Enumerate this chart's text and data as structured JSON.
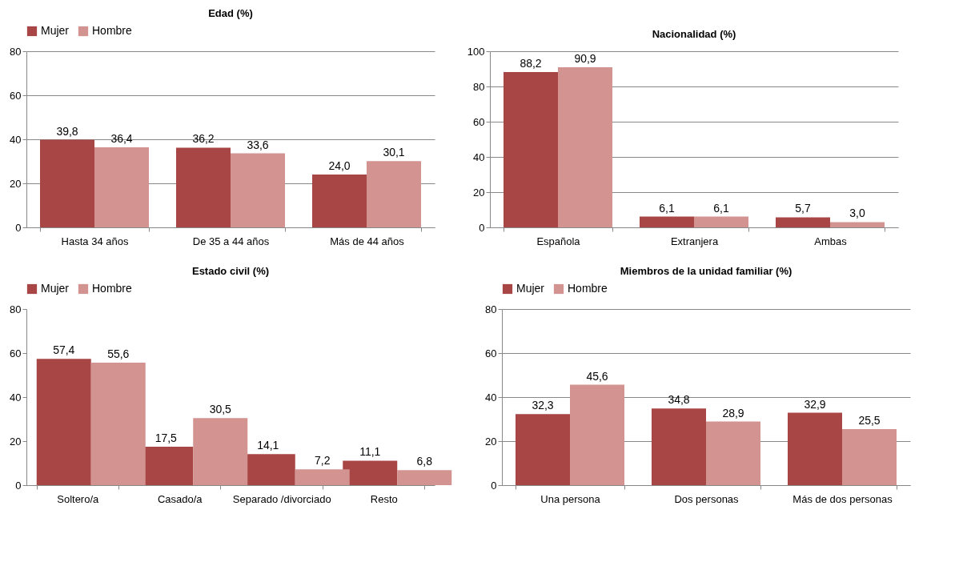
{
  "chart_data": [
    {
      "type": "bar",
      "title": "Edad (%)",
      "categories": [
        "Hasta 34 años",
        "De 35 a 44 años",
        "Más de 44 años"
      ],
      "ylim": [
        0,
        80
      ],
      "yticks": [
        0,
        20,
        40,
        60,
        80
      ],
      "grid": "y",
      "legend": "top",
      "series": [
        {
          "name": "Mujer",
          "color": "#a84646",
          "values": [
            39.8,
            36.2,
            24.0
          ],
          "value_labels": [
            "39,8",
            "36,2",
            "24,0"
          ]
        },
        {
          "name": "Hombre",
          "color": "#d39391",
          "values": [
            36.4,
            33.6,
            30.1
          ],
          "value_labels": [
            "36,4",
            "33,6",
            "30,1"
          ]
        }
      ]
    },
    {
      "type": "bar",
      "title": "Nacionalidad (%)",
      "categories": [
        "Española",
        "Extranjera",
        "Ambas"
      ],
      "ylim": [
        0,
        100
      ],
      "yticks": [
        0,
        20,
        40,
        60,
        80,
        100
      ],
      "grid": "y",
      "series": [
        {
          "color": "#a84646",
          "values": [
            88.2,
            6.1,
            5.7
          ],
          "value_labels": [
            "88,2",
            "6,1",
            "5,7"
          ]
        },
        {
          "color": "#d39391",
          "values": [
            90.9,
            6.1,
            3.0
          ],
          "value_labels": [
            "90,9",
            "6,1",
            "3,0"
          ]
        }
      ]
    },
    {
      "type": "bar",
      "title": "Estado civil (%)",
      "categories": [
        "Soltero/a",
        "Casado/a",
        "Separado /divorciado",
        "Resto"
      ],
      "ylim": [
        0,
        80
      ],
      "yticks": [
        0,
        20,
        40,
        60,
        80
      ],
      "legend": "top",
      "series": [
        {
          "name": "Mujer",
          "color": "#a84646",
          "values": [
            57.4,
            17.5,
            14.1,
            11.1
          ],
          "value_labels": [
            "57,4",
            "17,5",
            "14,1",
            "11,1"
          ]
        },
        {
          "name": "Hombre",
          "color": "#d39391",
          "values": [
            55.6,
            30.5,
            7.2,
            6.8
          ],
          "value_labels": [
            "55,6",
            "30,5",
            "7,2",
            "6,8"
          ]
        }
      ]
    },
    {
      "type": "bar",
      "title": "Miembros de la unidad familiar (%)",
      "categories": [
        "Una persona",
        "Dos personas",
        "Más de dos personas"
      ],
      "ylim": [
        0,
        80
      ],
      "yticks": [
        0,
        20,
        40,
        60,
        80
      ],
      "grid": "y",
      "legend": "top",
      "series": [
        {
          "name": "Mujer",
          "color": "#a84646",
          "values": [
            32.3,
            34.8,
            32.9
          ],
          "value_labels": [
            "32,3",
            "34,8",
            "32,9"
          ]
        },
        {
          "name": "Hombre",
          "color": "#d39391",
          "values": [
            45.6,
            28.9,
            25.5
          ],
          "value_labels": [
            "45,6",
            "28,9",
            "25,5"
          ]
        }
      ]
    }
  ]
}
